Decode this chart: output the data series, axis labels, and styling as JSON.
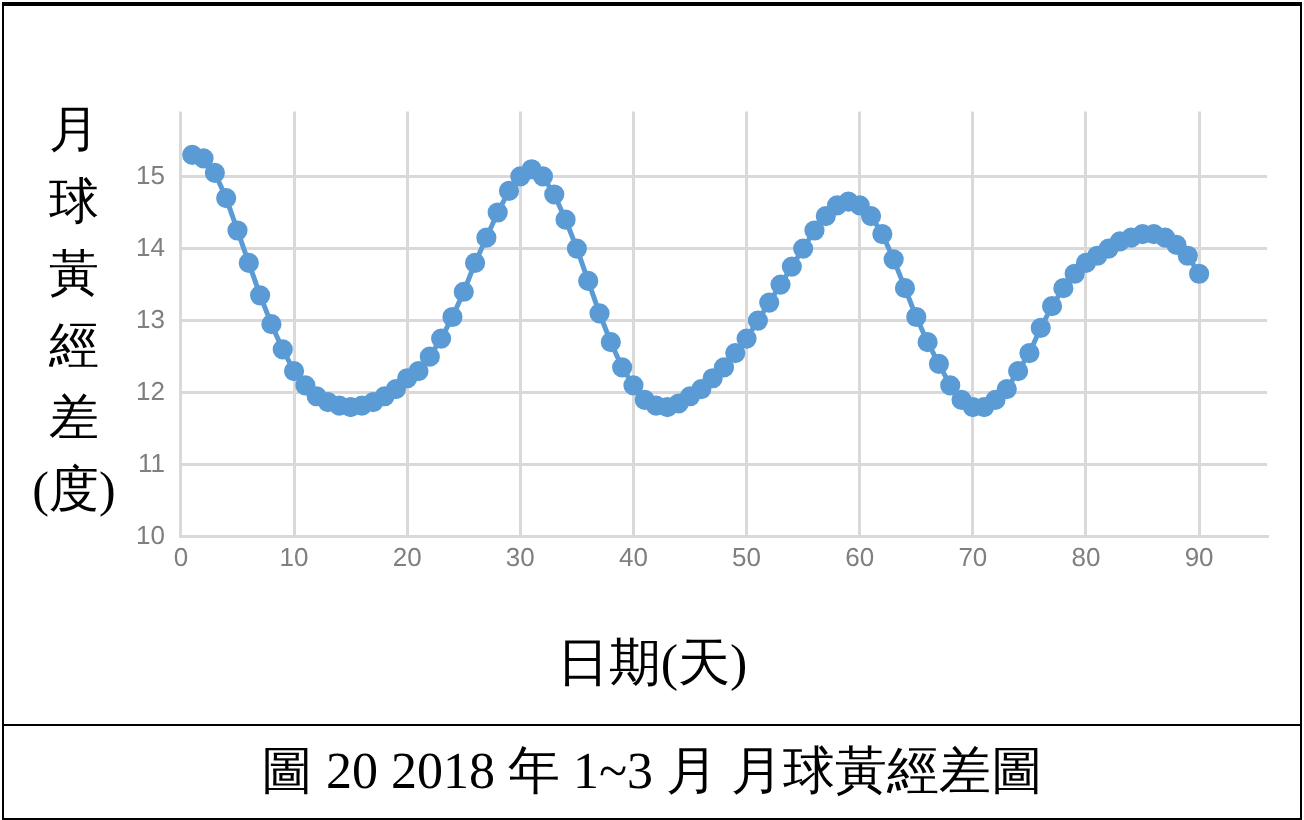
{
  "chart_data": {
    "type": "line",
    "title": "圖 20   2018 年 1~3 月 月球黃經差圖",
    "xlabel": "日期(天)",
    "ylabel": "月球黃經差(度)",
    "x": [
      1,
      2,
      3,
      4,
      5,
      6,
      7,
      8,
      9,
      10,
      11,
      12,
      13,
      14,
      15,
      16,
      17,
      18,
      19,
      20,
      21,
      22,
      23,
      24,
      25,
      26,
      27,
      28,
      29,
      30,
      31,
      32,
      33,
      34,
      35,
      36,
      37,
      38,
      39,
      40,
      41,
      42,
      43,
      44,
      45,
      46,
      47,
      48,
      49,
      50,
      51,
      52,
      53,
      54,
      55,
      56,
      57,
      58,
      59,
      60,
      61,
      62,
      63,
      64,
      65,
      66,
      67,
      68,
      69,
      70,
      71,
      72,
      73,
      74,
      75,
      76,
      77,
      78,
      79,
      80,
      81,
      82,
      83,
      84,
      85,
      86,
      87,
      88,
      89,
      90
    ],
    "series": [
      {
        "color": "#5b9bd5",
        "values": [
          15.3,
          15.25,
          15.05,
          14.7,
          14.25,
          13.8,
          13.35,
          12.95,
          12.6,
          12.3,
          12.1,
          11.95,
          11.87,
          11.82,
          11.8,
          11.82,
          11.87,
          11.95,
          12.05,
          12.2,
          12.3,
          12.5,
          12.75,
          13.05,
          13.4,
          13.8,
          14.15,
          14.5,
          14.8,
          15.0,
          15.1,
          15.0,
          14.75,
          14.4,
          14.0,
          13.55,
          13.1,
          12.7,
          12.35,
          12.1,
          11.9,
          11.82,
          11.8,
          11.85,
          11.95,
          12.05,
          12.2,
          12.35,
          12.55,
          12.75,
          13.0,
          13.25,
          13.5,
          13.75,
          14.0,
          14.25,
          14.45,
          14.6,
          14.65,
          14.6,
          14.45,
          14.2,
          13.85,
          13.45,
          13.05,
          12.7,
          12.4,
          12.1,
          11.9,
          11.8,
          11.8,
          11.9,
          12.05,
          12.3,
          12.55,
          12.9,
          13.2,
          13.45,
          13.65,
          13.8,
          13.9,
          14.0,
          14.1,
          14.15,
          14.2,
          14.2,
          14.15,
          14.05,
          13.9,
          13.65
        ]
      }
    ],
    "xlim": [
      0,
      96
    ],
    "xticks": [
      0,
      10,
      20,
      30,
      40,
      50,
      60,
      70,
      80,
      90
    ],
    "ylim": [
      10,
      15.9
    ],
    "yticks": [
      10,
      11,
      12,
      13,
      14,
      15
    ],
    "grid": true,
    "legend": false,
    "marker": "circle",
    "line_style": "solid"
  }
}
